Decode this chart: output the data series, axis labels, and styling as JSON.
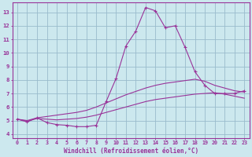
{
  "xlabel": "Windchill (Refroidissement éolien,°C)",
  "background_color": "#cce8ee",
  "grid_color": "#99bbcc",
  "line_color": "#993399",
  "spine_color": "#993399",
  "xlim": [
    -0.5,
    23.5
  ],
  "ylim": [
    3.7,
    13.7
  ],
  "yticks": [
    4,
    5,
    6,
    7,
    8,
    9,
    10,
    11,
    12,
    13
  ],
  "xticks": [
    0,
    1,
    2,
    3,
    4,
    5,
    6,
    7,
    8,
    9,
    10,
    11,
    12,
    13,
    14,
    15,
    16,
    17,
    18,
    19,
    20,
    21,
    22,
    23
  ],
  "series1_x": [
    0,
    1,
    2,
    3,
    4,
    5,
    6,
    7,
    8,
    9,
    10,
    11,
    12,
    13,
    14,
    15,
    16,
    17,
    18,
    19,
    20,
    21,
    22,
    23
  ],
  "series1_y": [
    5.1,
    4.9,
    5.2,
    4.85,
    4.7,
    4.65,
    4.55,
    4.55,
    4.65,
    6.4,
    8.1,
    10.5,
    11.6,
    13.35,
    13.1,
    11.85,
    12.0,
    10.4,
    8.6,
    7.6,
    7.0,
    7.0,
    7.0,
    7.2
  ],
  "series2_x": [
    0,
    1,
    2,
    3,
    4,
    5,
    6,
    7,
    8,
    9,
    10,
    11,
    12,
    13,
    14,
    15,
    16,
    17,
    18,
    19,
    20,
    21,
    22,
    23
  ],
  "series2_y": [
    5.1,
    5.0,
    5.2,
    5.3,
    5.4,
    5.5,
    5.6,
    5.75,
    6.0,
    6.3,
    6.6,
    6.9,
    7.15,
    7.4,
    7.6,
    7.75,
    7.85,
    7.95,
    8.05,
    7.9,
    7.6,
    7.4,
    7.2,
    7.1
  ],
  "series3_x": [
    0,
    1,
    2,
    3,
    4,
    5,
    6,
    7,
    8,
    9,
    10,
    11,
    12,
    13,
    14,
    15,
    16,
    17,
    18,
    19,
    20,
    21,
    22,
    23
  ],
  "series3_y": [
    5.1,
    4.95,
    5.15,
    5.1,
    5.05,
    5.1,
    5.15,
    5.25,
    5.4,
    5.6,
    5.8,
    6.0,
    6.2,
    6.4,
    6.55,
    6.65,
    6.75,
    6.85,
    6.95,
    7.0,
    7.05,
    6.95,
    6.8,
    6.65
  ]
}
